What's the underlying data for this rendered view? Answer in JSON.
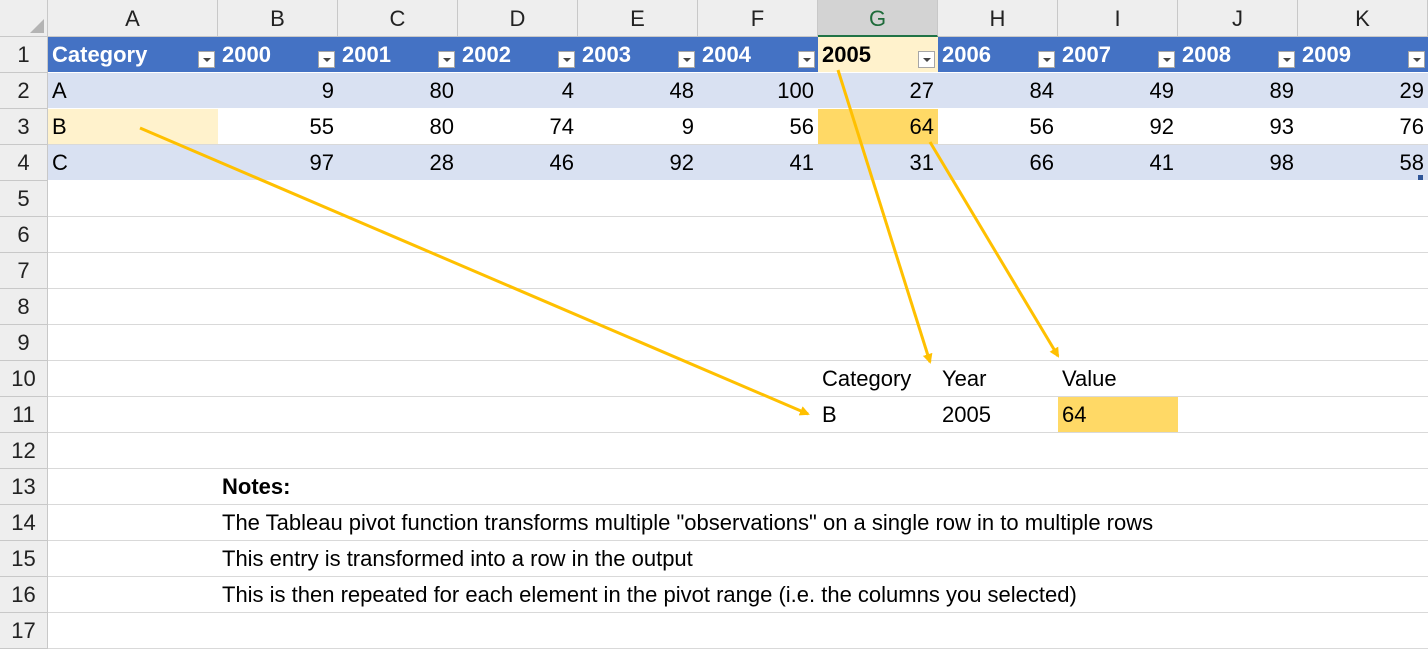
{
  "column_headers": [
    "A",
    "B",
    "C",
    "D",
    "E",
    "F",
    "G",
    "H",
    "I",
    "J",
    "K"
  ],
  "selected_column": "G",
  "row_numbers": [
    "1",
    "2",
    "3",
    "4",
    "5",
    "6",
    "7",
    "8",
    "9",
    "10",
    "11",
    "12",
    "13",
    "14",
    "15",
    "16",
    "17"
  ],
  "table": {
    "header_label": "Category",
    "years": [
      "2000",
      "2001",
      "2002",
      "2003",
      "2004",
      "2005",
      "2006",
      "2007",
      "2008",
      "2009"
    ],
    "rows": [
      {
        "category": "A",
        "values": [
          "9",
          "80",
          "4",
          "48",
          "100",
          "27",
          "84",
          "49",
          "89",
          "29"
        ]
      },
      {
        "category": "B",
        "values": [
          "55",
          "80",
          "74",
          "9",
          "56",
          "64",
          "56",
          "92",
          "93",
          "76"
        ]
      },
      {
        "category": "C",
        "values": [
          "97",
          "28",
          "46",
          "92",
          "41",
          "31",
          "66",
          "41",
          "98",
          "58"
        ]
      }
    ]
  },
  "output": {
    "headers": [
      "Category",
      "Year",
      "Value"
    ],
    "row": [
      "B",
      "2005",
      "64"
    ]
  },
  "notes": {
    "title": "Notes:",
    "lines": [
      "The Tableau pivot function transforms multiple \"observations\" on a single row in to multiple rows",
      "This entry is transformed into a row in the output",
      "This is then repeated for each element in the pivot range (i.e. the columns you selected)"
    ]
  },
  "colors": {
    "table_header": "#4472c4",
    "band": "#d9e1f2",
    "highlight": "#ffd966",
    "light_highlight": "#fff2cc",
    "arrow": "#ffc000"
  },
  "icons": {
    "filter_dropdown": "dropdown-arrow-icon",
    "select_all": "select-all-triangle-icon"
  }
}
